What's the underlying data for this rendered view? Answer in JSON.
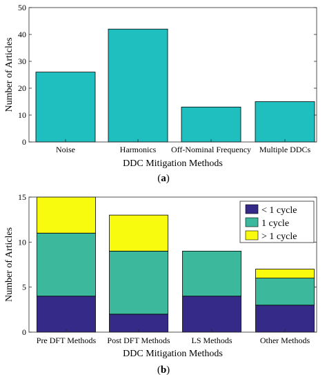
{
  "chart_data": [
    {
      "panel_label_letter": "a",
      "type": "bar",
      "categories": [
        "Noise",
        "Harmonics",
        "Off-Nominal Frequency",
        "Multiple DDCs"
      ],
      "values": [
        26,
        42,
        13,
        15
      ],
      "color": "#1fbfbf",
      "xlabel": "DDC Mitigation Methods",
      "ylabel": "Number of Articles",
      "ylim": [
        0,
        50
      ],
      "yticks": [
        0,
        10,
        20,
        30,
        40,
        50
      ],
      "grid": false
    },
    {
      "panel_label_letter": "b",
      "type": "bar",
      "stacked": true,
      "categories": [
        "Pre DFT Methods",
        "Post DFT Methods",
        "LS Methods",
        "Other Methods"
      ],
      "series": [
        {
          "name": "< 1 cycle",
          "values": [
            4,
            2,
            4,
            3
          ],
          "color": "#352a87"
        },
        {
          "name": "1 cycle",
          "values": [
            7,
            7,
            5,
            3
          ],
          "color": "#3cb89c"
        },
        {
          "name": "> 1 cycle",
          "values": [
            4,
            4,
            0,
            1
          ],
          "color": "#f9fb0e"
        }
      ],
      "xlabel": "DDC Mitigation Methods",
      "ylabel": "Number of Articles",
      "ylim": [
        0,
        15
      ],
      "yticks": [
        0,
        5,
        10,
        15
      ],
      "legend_position": "top-right",
      "grid": false
    }
  ]
}
